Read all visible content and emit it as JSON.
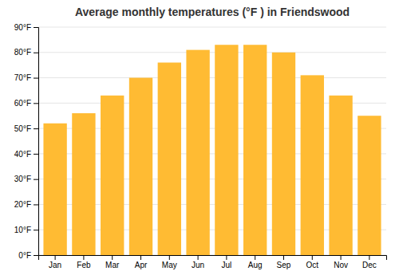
{
  "chart_data": {
    "type": "bar",
    "title": "Average monthly temperatures (°F ) in Friendswood",
    "categories": [
      "Jan",
      "Feb",
      "Mar",
      "Apr",
      "May",
      "Jun",
      "Jul",
      "Aug",
      "Sep",
      "Oct",
      "Nov",
      "Dec"
    ],
    "values": [
      52,
      56,
      63,
      70,
      76,
      81,
      83,
      83,
      80,
      71,
      63,
      55
    ],
    "color": "#FFBB33",
    "ylim": [
      0,
      90
    ],
    "yticks": [
      {
        "value": 0,
        "label": "0°F"
      },
      {
        "value": 10,
        "label": "10°F"
      },
      {
        "value": 20,
        "label": "20°F"
      },
      {
        "value": 30,
        "label": "30°F"
      },
      {
        "value": 40,
        "label": "40°F"
      },
      {
        "value": 50,
        "label": "50°F"
      },
      {
        "value": 60,
        "label": "60°F"
      },
      {
        "value": 70,
        "label": "70°F"
      },
      {
        "value": 80,
        "label": "80°F"
      },
      {
        "value": 90,
        "label": "90°F"
      }
    ],
    "grid": true
  }
}
